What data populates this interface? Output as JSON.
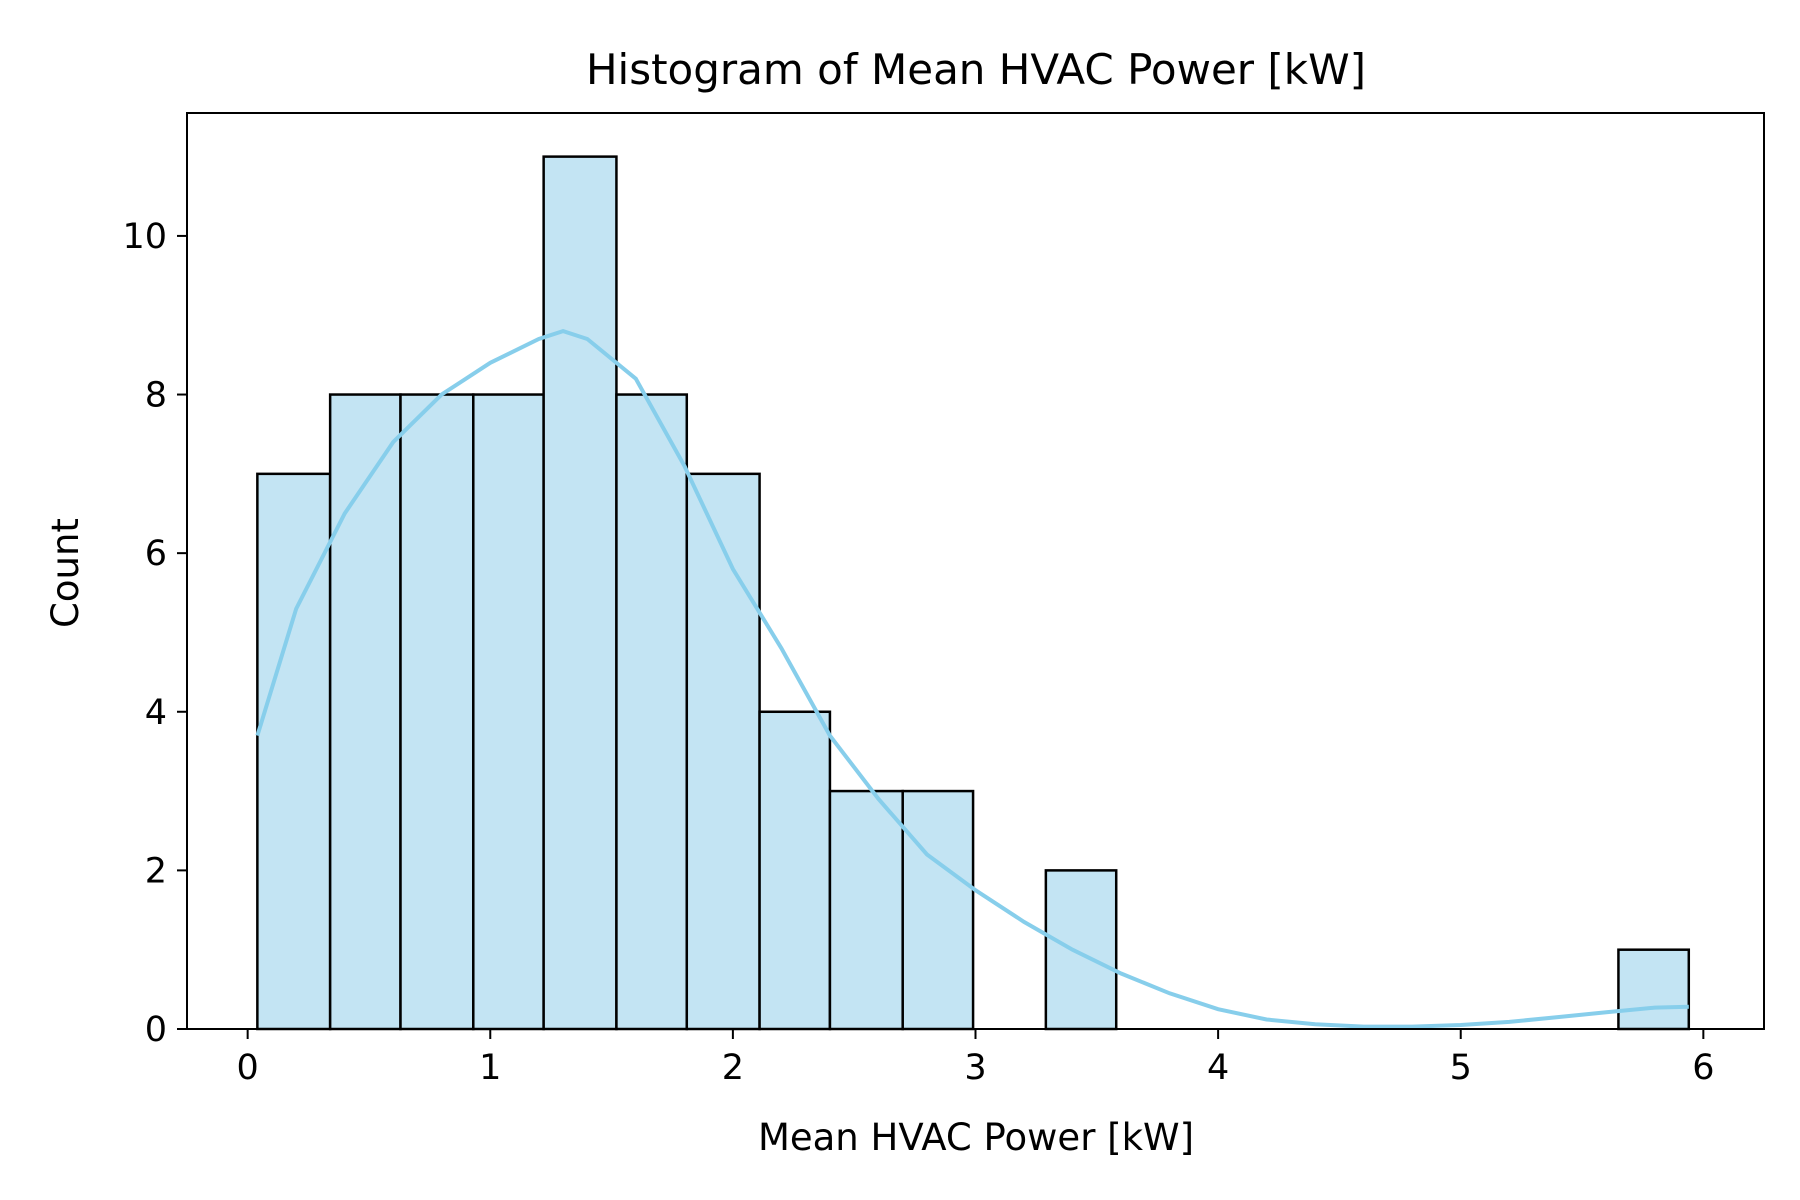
{
  "chart_data": {
    "type": "bar",
    "title": "Histogram of Mean HVAC Power [kW]",
    "xlabel": "Mean HVAC Power [kW]",
    "ylabel": "Count",
    "xlim": [
      -0.25,
      6.25
    ],
    "ylim": [
      0,
      11.55
    ],
    "xticks": [
      0,
      1,
      2,
      3,
      4,
      5,
      6
    ],
    "yticks": [
      0,
      2,
      4,
      6,
      8,
      10
    ],
    "bins": [
      {
        "start": 0.04,
        "end": 0.34,
        "count": 7
      },
      {
        "start": 0.34,
        "end": 0.63,
        "count": 8
      },
      {
        "start": 0.63,
        "end": 0.93,
        "count": 8
      },
      {
        "start": 0.93,
        "end": 1.22,
        "count": 8
      },
      {
        "start": 1.22,
        "end": 1.52,
        "count": 11
      },
      {
        "start": 1.52,
        "end": 1.81,
        "count": 8
      },
      {
        "start": 1.81,
        "end": 2.11,
        "count": 7
      },
      {
        "start": 2.11,
        "end": 2.4,
        "count": 4
      },
      {
        "start": 2.4,
        "end": 2.7,
        "count": 3
      },
      {
        "start": 2.7,
        "end": 2.99,
        "count": 3
      },
      {
        "start": 2.99,
        "end": 3.29,
        "count": 0
      },
      {
        "start": 3.29,
        "end": 3.58,
        "count": 2
      },
      {
        "start": 3.58,
        "end": 3.88,
        "count": 0
      },
      {
        "start": 3.88,
        "end": 4.17,
        "count": 0
      },
      {
        "start": 4.17,
        "end": 4.47,
        "count": 0
      },
      {
        "start": 4.47,
        "end": 4.76,
        "count": 0
      },
      {
        "start": 4.76,
        "end": 5.06,
        "count": 0
      },
      {
        "start": 5.06,
        "end": 5.35,
        "count": 0
      },
      {
        "start": 5.35,
        "end": 5.65,
        "count": 0
      },
      {
        "start": 5.65,
        "end": 5.94,
        "count": 1
      }
    ],
    "kde": {
      "x": [
        0.04,
        0.2,
        0.4,
        0.6,
        0.8,
        1.0,
        1.2,
        1.3,
        1.4,
        1.6,
        1.8,
        2.0,
        2.2,
        2.4,
        2.6,
        2.8,
        3.0,
        3.2,
        3.4,
        3.6,
        3.8,
        4.0,
        4.2,
        4.4,
        4.6,
        4.8,
        5.0,
        5.2,
        5.4,
        5.6,
        5.8,
        5.94
      ],
      "y": [
        3.7,
        5.3,
        6.5,
        7.4,
        8.0,
        8.4,
        8.7,
        8.8,
        8.7,
        8.2,
        7.1,
        5.8,
        4.8,
        3.7,
        2.9,
        2.2,
        1.75,
        1.35,
        1.0,
        0.7,
        0.45,
        0.25,
        0.12,
        0.06,
        0.03,
        0.03,
        0.05,
        0.09,
        0.15,
        0.21,
        0.27,
        0.28
      ]
    },
    "colors": {
      "bar_fill": "#c3e4f3",
      "bar_edge": "#000000",
      "kde_line": "#87ceeb"
    }
  }
}
